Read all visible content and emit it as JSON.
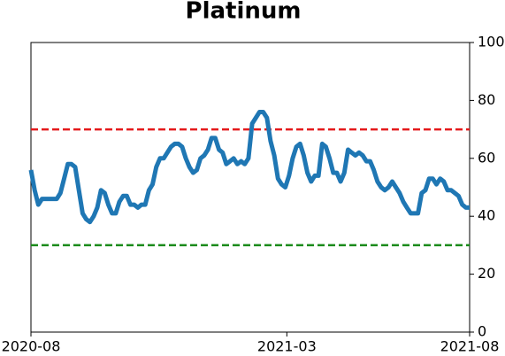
{
  "chart_data": {
    "type": "line",
    "title": "Platinum",
    "xlim": [
      "2020-08",
      "2021-08"
    ],
    "xticks": [
      "2020-08",
      "2021-03",
      "2021-08"
    ],
    "ylim": [
      0,
      100
    ],
    "yticks": [
      0,
      20,
      40,
      60,
      80,
      100
    ],
    "y_axis_side": "right",
    "color": "#1f77b4",
    "hlines": [
      {
        "value": 70,
        "color": "#e41a1c"
      },
      {
        "value": 30,
        "color": "#1a8a1a"
      }
    ],
    "values": [
      56,
      49,
      44,
      46,
      46,
      46,
      46,
      46,
      48,
      53,
      58,
      58,
      57,
      49,
      41,
      39,
      38,
      40,
      43,
      49,
      48,
      44,
      41,
      41,
      45,
      47,
      47,
      44,
      44,
      43,
      44,
      44,
      49,
      51,
      57,
      60,
      60,
      62,
      64,
      65,
      65,
      64,
      60,
      57,
      55,
      56,
      60,
      61,
      63,
      67,
      67,
      63,
      62,
      58,
      59,
      60,
      58,
      59,
      58,
      60,
      72,
      74,
      76,
      76,
      74,
      66,
      61,
      53,
      51,
      50,
      54,
      60,
      64,
      65,
      61,
      55,
      52,
      54,
      54,
      65,
      64,
      60,
      55,
      55,
      52,
      55,
      63,
      62,
      61,
      62,
      61,
      59,
      59,
      56,
      52,
      50,
      49,
      50,
      52,
      50,
      48,
      45,
      43,
      41,
      41,
      41,
      48,
      49,
      53,
      53,
      51,
      53,
      52,
      49,
      49,
      48,
      47,
      44,
      43,
      43
    ]
  }
}
